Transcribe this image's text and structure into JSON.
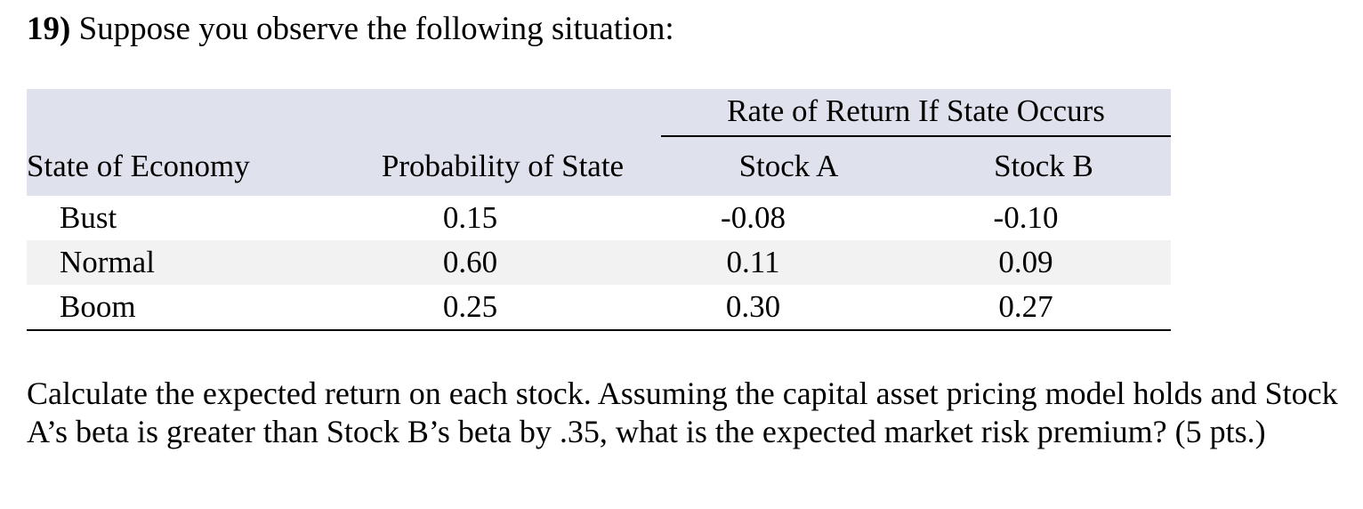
{
  "question": {
    "number": "19)",
    "intro": "Suppose you observe the following situation:",
    "body": "Calculate the expected return on each stock. Assuming the capital asset pricing model holds and Stock A’s beta is greater than Stock B’s beta by .35, what is the expected market risk premium? (5 pts.)"
  },
  "table": {
    "group_header": "Rate of Return If State Occurs",
    "headers": [
      "State of Economy",
      "Probability of State",
      "Stock A",
      "Stock B"
    ],
    "rows": [
      [
        "Bust",
        "0.15",
        "-0.08",
        "-0.10"
      ],
      [
        "Normal",
        "0.60",
        "0.11",
        "0.09"
      ],
      [
        "Boom",
        "0.25",
        "0.30",
        "0.27"
      ]
    ],
    "colors": {
      "header_background": "#dfe2ec",
      "alternate_row_background": "#f2f2f2"
    }
  }
}
